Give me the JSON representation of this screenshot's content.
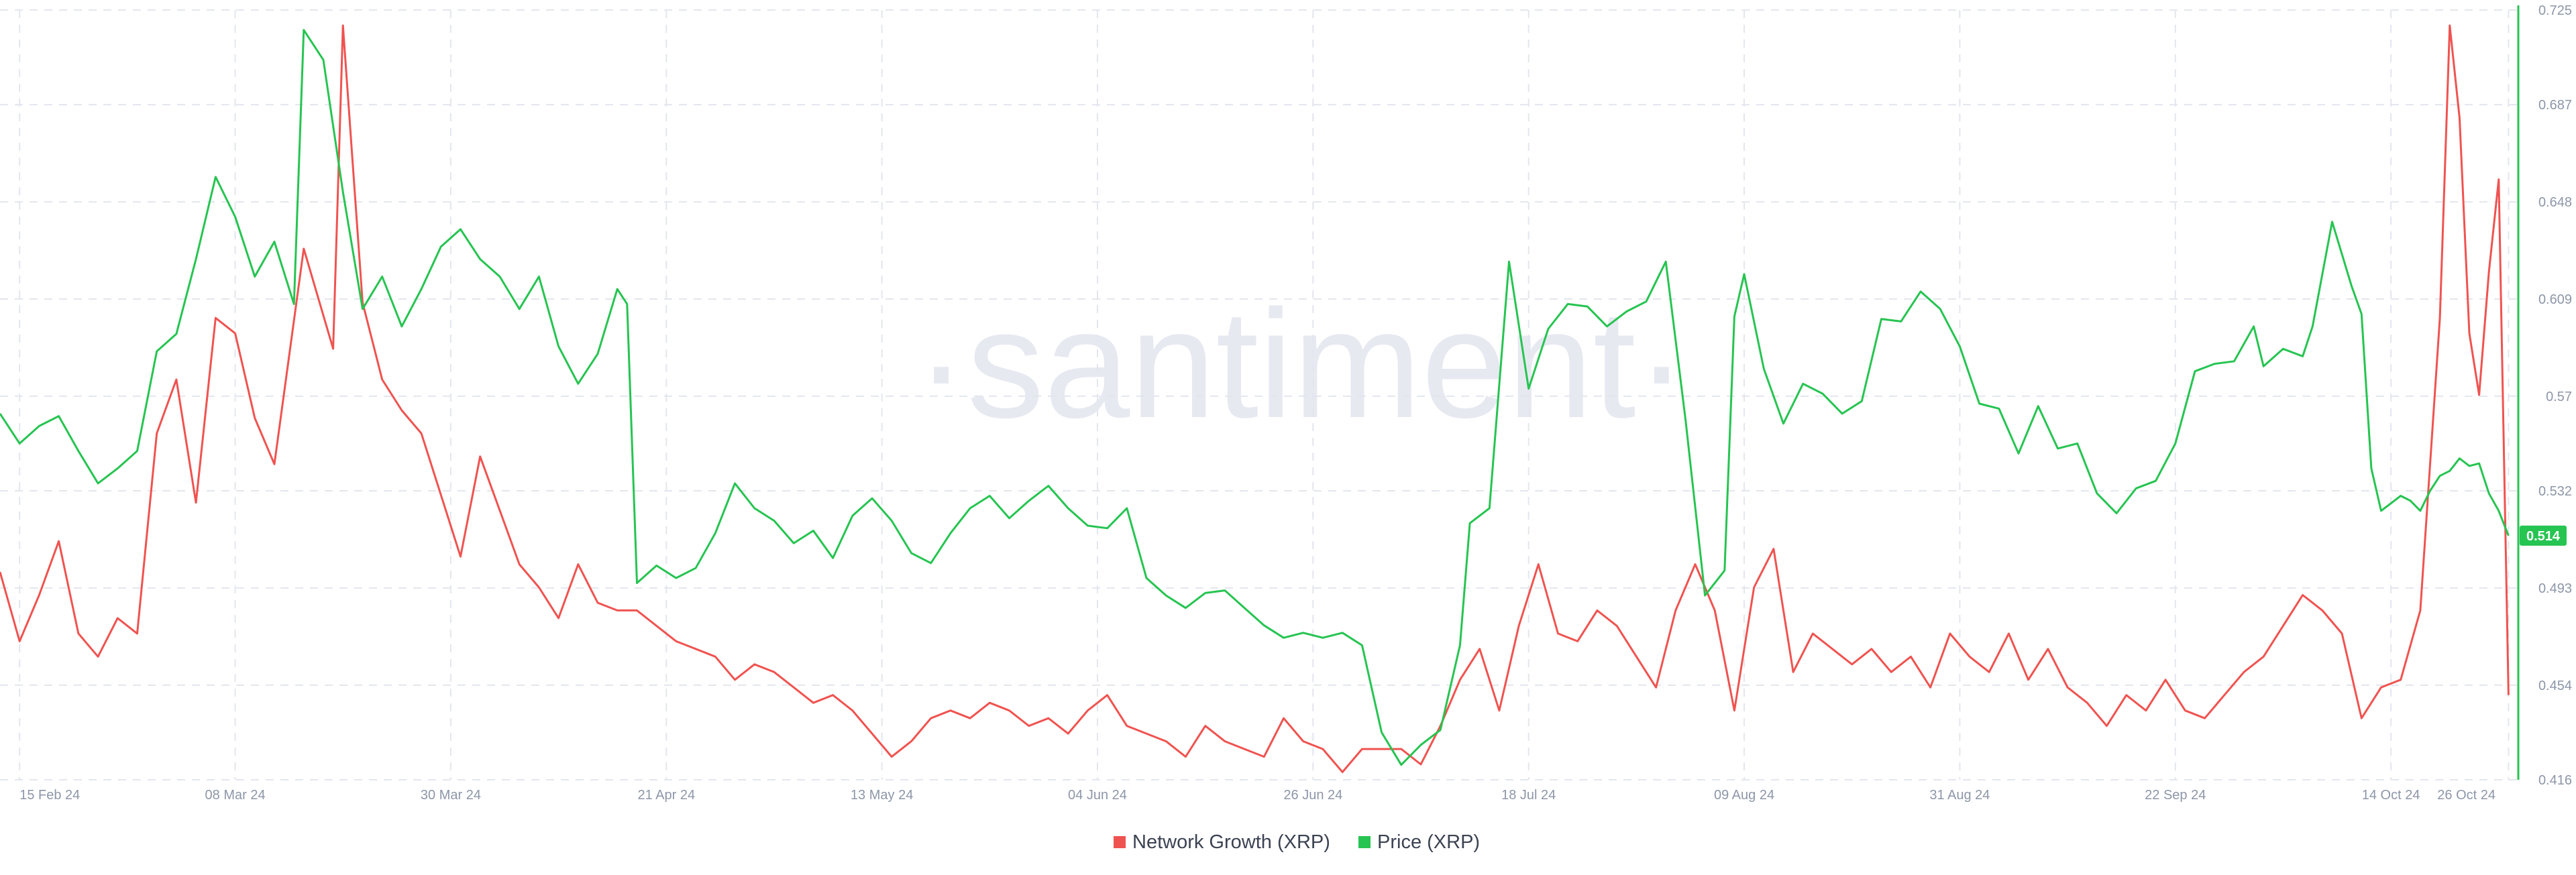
{
  "watermark": {
    "text": "·santiment·"
  },
  "colors": {
    "network_growth": "#ef5350",
    "price": "#26c451",
    "grid": "#e3e6ee",
    "tick": "#8d96a8",
    "price_axis": "#26c451"
  },
  "chart_data": {
    "type": "line",
    "title": "",
    "xlabel": "",
    "ylabel": "",
    "grid": true,
    "legend": "bottom-center",
    "x_ticks": [
      "15 Feb 24",
      "08 Mar 24",
      "30 Mar 24",
      "21 Apr 24",
      "13 May 24",
      "04 Jun 24",
      "26 Jun 24",
      "18 Jul 24",
      "09 Aug 24",
      "31 Aug 24",
      "22 Sep 24",
      "14 Oct 24",
      "26 Oct 24"
    ],
    "xlim": [
      "2024-02-13",
      "2024-10-27"
    ],
    "y_right": {
      "ticks": [
        "0.416",
        "0.454",
        "0.493",
        "0.532",
        "0.57",
        "0.609",
        "0.648",
        "0.687",
        "0.725"
      ],
      "ylim": [
        0.416,
        0.725
      ]
    },
    "current_price_badge": "0.514",
    "series": [
      {
        "name": "Network Growth (XRP)",
        "axis": "hidden",
        "ylim": [
          0,
          100
        ],
        "points": [
          [
            "2024-02-13",
            27
          ],
          [
            "2024-02-15",
            18
          ],
          [
            "2024-02-17",
            24
          ],
          [
            "2024-02-19",
            31
          ],
          [
            "2024-02-21",
            19
          ],
          [
            "2024-02-23",
            16
          ],
          [
            "2024-02-25",
            21
          ],
          [
            "2024-02-27",
            19
          ],
          [
            "2024-02-29",
            45
          ],
          [
            "2024-03-02",
            52
          ],
          [
            "2024-03-04",
            36
          ],
          [
            "2024-03-06",
            60
          ],
          [
            "2024-03-08",
            58
          ],
          [
            "2024-03-10",
            47
          ],
          [
            "2024-03-12",
            41
          ],
          [
            "2024-03-15",
            69
          ],
          [
            "2024-03-18",
            56
          ],
          [
            "2024-03-19",
            98
          ],
          [
            "2024-03-21",
            62
          ],
          [
            "2024-03-23",
            52
          ],
          [
            "2024-03-25",
            48
          ],
          [
            "2024-03-27",
            45
          ],
          [
            "2024-03-29",
            37
          ],
          [
            "2024-03-31",
            29
          ],
          [
            "2024-04-02",
            42
          ],
          [
            "2024-04-04",
            35
          ],
          [
            "2024-04-06",
            28
          ],
          [
            "2024-04-08",
            25
          ],
          [
            "2024-04-10",
            21
          ],
          [
            "2024-04-12",
            28
          ],
          [
            "2024-04-14",
            23
          ],
          [
            "2024-04-16",
            22
          ],
          [
            "2024-04-18",
            22
          ],
          [
            "2024-04-20",
            20
          ],
          [
            "2024-04-22",
            18
          ],
          [
            "2024-04-24",
            17
          ],
          [
            "2024-04-26",
            16
          ],
          [
            "2024-04-28",
            13
          ],
          [
            "2024-04-30",
            15
          ],
          [
            "2024-05-02",
            14
          ],
          [
            "2024-05-04",
            12
          ],
          [
            "2024-05-06",
            10
          ],
          [
            "2024-05-08",
            11
          ],
          [
            "2024-05-10",
            9
          ],
          [
            "2024-05-12",
            6
          ],
          [
            "2024-05-14",
            3
          ],
          [
            "2024-05-16",
            5
          ],
          [
            "2024-05-18",
            8
          ],
          [
            "2024-05-20",
            9
          ],
          [
            "2024-05-22",
            8
          ],
          [
            "2024-05-24",
            10
          ],
          [
            "2024-05-26",
            9
          ],
          [
            "2024-05-28",
            7
          ],
          [
            "2024-05-30",
            8
          ],
          [
            "2024-06-01",
            6
          ],
          [
            "2024-06-03",
            9
          ],
          [
            "2024-06-05",
            11
          ],
          [
            "2024-06-07",
            7
          ],
          [
            "2024-06-09",
            6
          ],
          [
            "2024-06-11",
            5
          ],
          [
            "2024-06-13",
            3
          ],
          [
            "2024-06-15",
            7
          ],
          [
            "2024-06-17",
            5
          ],
          [
            "2024-06-19",
            4
          ],
          [
            "2024-06-21",
            3
          ],
          [
            "2024-06-23",
            8
          ],
          [
            "2024-06-25",
            5
          ],
          [
            "2024-06-27",
            4
          ],
          [
            "2024-06-29",
            1
          ],
          [
            "2024-07-01",
            4
          ],
          [
            "2024-07-03",
            4
          ],
          [
            "2024-07-05",
            4
          ],
          [
            "2024-07-07",
            2
          ],
          [
            "2024-07-09",
            7
          ],
          [
            "2024-07-11",
            13
          ],
          [
            "2024-07-13",
            17
          ],
          [
            "2024-07-15",
            9
          ],
          [
            "2024-07-17",
            20
          ],
          [
            "2024-07-19",
            28
          ],
          [
            "2024-07-21",
            19
          ],
          [
            "2024-07-23",
            18
          ],
          [
            "2024-07-25",
            22
          ],
          [
            "2024-07-27",
            20
          ],
          [
            "2024-07-29",
            16
          ],
          [
            "2024-07-31",
            12
          ],
          [
            "2024-08-02",
            22
          ],
          [
            "2024-08-04",
            28
          ],
          [
            "2024-08-06",
            22
          ],
          [
            "2024-08-08",
            9
          ],
          [
            "2024-08-10",
            25
          ],
          [
            "2024-08-12",
            30
          ],
          [
            "2024-08-14",
            14
          ],
          [
            "2024-08-16",
            19
          ],
          [
            "2024-08-18",
            17
          ],
          [
            "2024-08-20",
            15
          ],
          [
            "2024-08-22",
            17
          ],
          [
            "2024-08-24",
            14
          ],
          [
            "2024-08-26",
            16
          ],
          [
            "2024-08-28",
            12
          ],
          [
            "2024-08-30",
            19
          ],
          [
            "2024-09-01",
            16
          ],
          [
            "2024-09-03",
            14
          ],
          [
            "2024-09-05",
            19
          ],
          [
            "2024-09-07",
            13
          ],
          [
            "2024-09-09",
            17
          ],
          [
            "2024-09-11",
            12
          ],
          [
            "2024-09-13",
            10
          ],
          [
            "2024-09-15",
            7
          ],
          [
            "2024-09-17",
            11
          ],
          [
            "2024-09-19",
            9
          ],
          [
            "2024-09-21",
            13
          ],
          [
            "2024-09-23",
            9
          ],
          [
            "2024-09-25",
            8
          ],
          [
            "2024-09-27",
            11
          ],
          [
            "2024-09-29",
            14
          ],
          [
            "2024-10-01",
            16
          ],
          [
            "2024-10-03",
            20
          ],
          [
            "2024-10-05",
            24
          ],
          [
            "2024-10-07",
            22
          ],
          [
            "2024-10-09",
            19
          ],
          [
            "2024-10-11",
            8
          ],
          [
            "2024-10-13",
            12
          ],
          [
            "2024-10-15",
            13
          ],
          [
            "2024-10-17",
            22
          ],
          [
            "2024-10-19",
            60
          ],
          [
            "2024-10-20",
            98
          ],
          [
            "2024-10-21",
            86
          ],
          [
            "2024-10-22",
            58
          ],
          [
            "2024-10-23",
            50
          ],
          [
            "2024-10-24",
            66
          ],
          [
            "2024-10-25",
            78
          ],
          [
            "2024-10-26",
            11
          ]
        ]
      },
      {
        "name": "Price (XRP)",
        "axis": "right",
        "points": [
          [
            "2024-02-13",
            0.563
          ],
          [
            "2024-02-15",
            0.551
          ],
          [
            "2024-02-17",
            0.558
          ],
          [
            "2024-02-19",
            0.562
          ],
          [
            "2024-02-21",
            0.548
          ],
          [
            "2024-02-23",
            0.535
          ],
          [
            "2024-02-25",
            0.541
          ],
          [
            "2024-02-27",
            0.548
          ],
          [
            "2024-02-29",
            0.588
          ],
          [
            "2024-03-02",
            0.595
          ],
          [
            "2024-03-04",
            0.625
          ],
          [
            "2024-03-06",
            0.658
          ],
          [
            "2024-03-08",
            0.642
          ],
          [
            "2024-03-10",
            0.618
          ],
          [
            "2024-03-12",
            0.632
          ],
          [
            "2024-03-14",
            0.607
          ],
          [
            "2024-03-15",
            0.717
          ],
          [
            "2024-03-17",
            0.705
          ],
          [
            "2024-03-19",
            0.652
          ],
          [
            "2024-03-21",
            0.605
          ],
          [
            "2024-03-23",
            0.618
          ],
          [
            "2024-03-25",
            0.598
          ],
          [
            "2024-03-27",
            0.613
          ],
          [
            "2024-03-29",
            0.63
          ],
          [
            "2024-03-31",
            0.637
          ],
          [
            "2024-04-02",
            0.625
          ],
          [
            "2024-04-04",
            0.618
          ],
          [
            "2024-04-06",
            0.605
          ],
          [
            "2024-04-08",
            0.618
          ],
          [
            "2024-04-10",
            0.59
          ],
          [
            "2024-04-12",
            0.575
          ],
          [
            "2024-04-14",
            0.587
          ],
          [
            "2024-04-16",
            0.613
          ],
          [
            "2024-04-17",
            0.607
          ],
          [
            "2024-04-18",
            0.495
          ],
          [
            "2024-04-20",
            0.502
          ],
          [
            "2024-04-22",
            0.497
          ],
          [
            "2024-04-24",
            0.501
          ],
          [
            "2024-04-26",
            0.515
          ],
          [
            "2024-04-28",
            0.535
          ],
          [
            "2024-04-30",
            0.525
          ],
          [
            "2024-05-02",
            0.52
          ],
          [
            "2024-05-04",
            0.511
          ],
          [
            "2024-05-06",
            0.516
          ],
          [
            "2024-05-08",
            0.505
          ],
          [
            "2024-05-10",
            0.522
          ],
          [
            "2024-05-12",
            0.529
          ],
          [
            "2024-05-14",
            0.52
          ],
          [
            "2024-05-16",
            0.507
          ],
          [
            "2024-05-18",
            0.503
          ],
          [
            "2024-05-20",
            0.515
          ],
          [
            "2024-05-22",
            0.525
          ],
          [
            "2024-05-24",
            0.53
          ],
          [
            "2024-05-26",
            0.521
          ],
          [
            "2024-05-28",
            0.528
          ],
          [
            "2024-05-30",
            0.534
          ],
          [
            "2024-06-01",
            0.525
          ],
          [
            "2024-06-03",
            0.518
          ],
          [
            "2024-06-05",
            0.517
          ],
          [
            "2024-06-07",
            0.525
          ],
          [
            "2024-06-09",
            0.497
          ],
          [
            "2024-06-11",
            0.49
          ],
          [
            "2024-06-13",
            0.485
          ],
          [
            "2024-06-15",
            0.491
          ],
          [
            "2024-06-17",
            0.492
          ],
          [
            "2024-06-19",
            0.485
          ],
          [
            "2024-06-21",
            0.478
          ],
          [
            "2024-06-23",
            0.473
          ],
          [
            "2024-06-25",
            0.475
          ],
          [
            "2024-06-27",
            0.473
          ],
          [
            "2024-06-29",
            0.475
          ],
          [
            "2024-07-01",
            0.47
          ],
          [
            "2024-07-03",
            0.435
          ],
          [
            "2024-07-05",
            0.422
          ],
          [
            "2024-07-07",
            0.43
          ],
          [
            "2024-07-09",
            0.436
          ],
          [
            "2024-07-11",
            0.47
          ],
          [
            "2024-07-12",
            0.519
          ],
          [
            "2024-07-14",
            0.525
          ],
          [
            "2024-07-16",
            0.624
          ],
          [
            "2024-07-18",
            0.573
          ],
          [
            "2024-07-20",
            0.597
          ],
          [
            "2024-07-22",
            0.607
          ],
          [
            "2024-07-24",
            0.606
          ],
          [
            "2024-07-26",
            0.598
          ],
          [
            "2024-07-28",
            0.604
          ],
          [
            "2024-07-30",
            0.608
          ],
          [
            "2024-08-01",
            0.624
          ],
          [
            "2024-08-03",
            0.561
          ],
          [
            "2024-08-05",
            0.49
          ],
          [
            "2024-08-07",
            0.5
          ],
          [
            "2024-08-08",
            0.602
          ],
          [
            "2024-08-09",
            0.619
          ],
          [
            "2024-08-11",
            0.581
          ],
          [
            "2024-08-13",
            0.559
          ],
          [
            "2024-08-15",
            0.575
          ],
          [
            "2024-08-17",
            0.571
          ],
          [
            "2024-08-19",
            0.563
          ],
          [
            "2024-08-21",
            0.568
          ],
          [
            "2024-08-23",
            0.601
          ],
          [
            "2024-08-25",
            0.6
          ],
          [
            "2024-08-27",
            0.612
          ],
          [
            "2024-08-29",
            0.605
          ],
          [
            "2024-08-31",
            0.59
          ],
          [
            "2024-09-02",
            0.567
          ],
          [
            "2024-09-04",
            0.565
          ],
          [
            "2024-09-06",
            0.547
          ],
          [
            "2024-09-08",
            0.566
          ],
          [
            "2024-09-10",
            0.549
          ],
          [
            "2024-09-12",
            0.551
          ],
          [
            "2024-09-14",
            0.531
          ],
          [
            "2024-09-16",
            0.523
          ],
          [
            "2024-09-18",
            0.533
          ],
          [
            "2024-09-20",
            0.536
          ],
          [
            "2024-09-22",
            0.551
          ],
          [
            "2024-09-24",
            0.58
          ],
          [
            "2024-09-26",
            0.583
          ],
          [
            "2024-09-28",
            0.584
          ],
          [
            "2024-09-30",
            0.598
          ],
          [
            "2024-10-01",
            0.582
          ],
          [
            "2024-10-03",
            0.589
          ],
          [
            "2024-10-05",
            0.586
          ],
          [
            "2024-10-06",
            0.598
          ],
          [
            "2024-10-08",
            0.64
          ],
          [
            "2024-10-10",
            0.614
          ],
          [
            "2024-10-11",
            0.603
          ],
          [
            "2024-10-12",
            0.541
          ],
          [
            "2024-10-13",
            0.524
          ],
          [
            "2024-10-15",
            0.53
          ],
          [
            "2024-10-16",
            0.528
          ],
          [
            "2024-10-17",
            0.524
          ],
          [
            "2024-10-18",
            0.532
          ],
          [
            "2024-10-19",
            0.538
          ],
          [
            "2024-10-20",
            0.54
          ],
          [
            "2024-10-21",
            0.545
          ],
          [
            "2024-10-22",
            0.542
          ],
          [
            "2024-10-23",
            0.543
          ],
          [
            "2024-10-24",
            0.531
          ],
          [
            "2024-10-25",
            0.524
          ],
          [
            "2024-10-26",
            0.514
          ]
        ]
      }
    ]
  }
}
